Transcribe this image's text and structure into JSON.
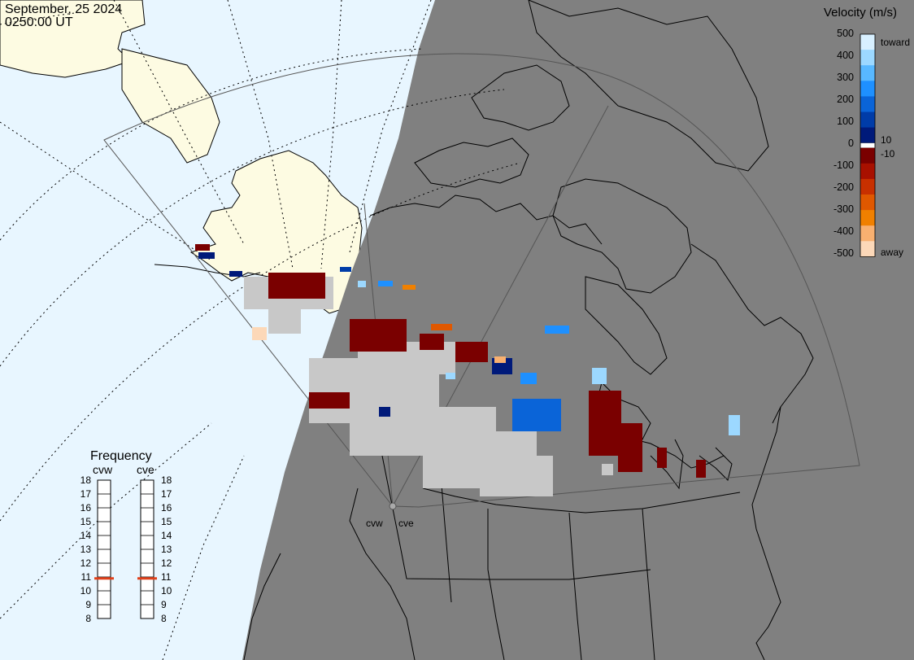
{
  "header": {
    "date": "September, 25 2024",
    "time": "0250:00 UT"
  },
  "colors": {
    "ocean": "#e8f6ff",
    "land_day": "#fdfbe2",
    "night": "#808080",
    "coast": "#000000",
    "scatter_gray": "#c8c8c8"
  },
  "velocity_scale": {
    "title": "Velocity (m/s)",
    "tick_labels": [
      "500",
      "400",
      "300",
      "200",
      "100",
      "0",
      "-100",
      "-200",
      "-300",
      "-400",
      "-500"
    ],
    "inner_labels": [
      "10",
      "-10"
    ],
    "toward_label": "toward",
    "away_label": "away",
    "toward_colors": [
      "#d8f0ff",
      "#9cd8ff",
      "#58b8ff",
      "#1e90ff",
      "#0a64d8",
      "#003ca8",
      "#001a7a"
    ],
    "away_colors": [
      "#7a0000",
      "#a81000",
      "#c83000",
      "#e05800",
      "#f08000",
      "#f8b070",
      "#fcd8b8"
    ]
  },
  "frequency": {
    "title": "Frequency",
    "radars": [
      "cvw",
      "cve"
    ],
    "ticks": [
      "18",
      "17",
      "16",
      "15",
      "14",
      "13",
      "12",
      "11",
      "10",
      "9",
      "8"
    ],
    "cvw_mhz": 10.9,
    "cve_mhz": 10.9,
    "marker_color": "#e0401a"
  },
  "map": {
    "radar_site_labels": [
      "cvw",
      "cve"
    ]
  }
}
